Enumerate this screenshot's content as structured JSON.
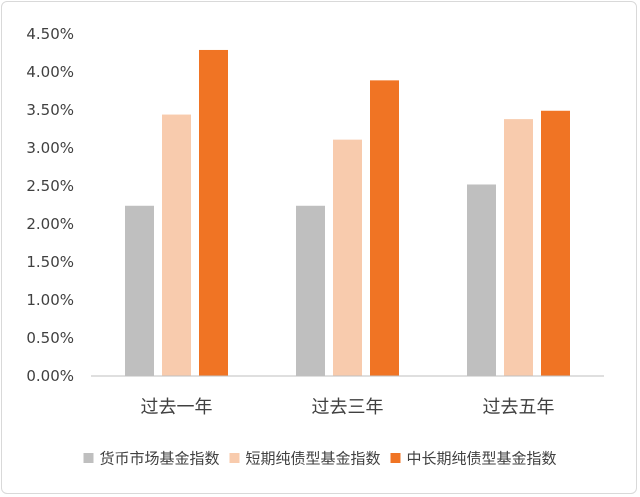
{
  "chart_data": {
    "type": "bar",
    "title": "",
    "xlabel": "",
    "ylabel": "",
    "categories": [
      "过去一年",
      "过去三年",
      "过去五年"
    ],
    "series": [
      {
        "name": "货币市场基金指数",
        "color": "#bfbfbf",
        "values": [
          2.24,
          2.24,
          2.52
        ]
      },
      {
        "name": "短期纯债型基金指数",
        "color": "#f8cbad",
        "values": [
          3.44,
          3.11,
          3.38
        ]
      },
      {
        "name": "中长期纯债型基金指数",
        "color": "#f07424",
        "values": [
          4.29,
          3.89,
          3.49
        ]
      }
    ],
    "ylim": [
      0,
      4.5
    ],
    "yticks": [
      "0.00%",
      "0.50%",
      "1.00%",
      "1.50%",
      "2.00%",
      "2.50%",
      "3.00%",
      "3.50%",
      "4.00%",
      "4.50%"
    ],
    "grid": false,
    "legend_position": "bottom"
  }
}
